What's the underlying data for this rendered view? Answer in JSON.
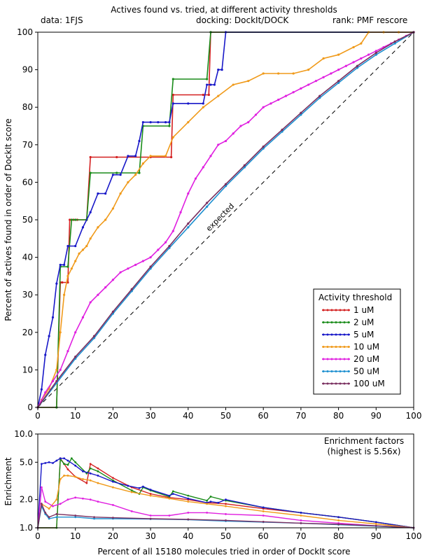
{
  "header": {
    "title": "Actives found vs. tried, at different activity thresholds",
    "data_label": "data: 1FJS",
    "docking_label": "docking: DockIt/DOCK",
    "rank_label": "rank: PMF rescore"
  },
  "chart_data": [
    {
      "type": "line",
      "ylabel": "Percent of actives found in order of DockIt score",
      "xlim": [
        0,
        100
      ],
      "ylim": [
        0,
        100
      ],
      "x_ticks": [
        "0",
        "10",
        "20",
        "30",
        "40",
        "50",
        "60",
        "70",
        "80",
        "90",
        "100"
      ],
      "y_ticks": [
        "0",
        "10",
        "20",
        "30",
        "40",
        "50",
        "60",
        "70",
        "80",
        "90",
        "100"
      ],
      "reference_line_label": "expected",
      "legend_title": "Activity threshold",
      "legend_position": "bottom-right",
      "series": [
        {
          "name": "1 uM",
          "color": "#d42020",
          "x": [
            0,
            5,
            6,
            6.5,
            8,
            8.5,
            9.5,
            10.5,
            13,
            14,
            21,
            30,
            35.5,
            36,
            44,
            45.5,
            46,
            100
          ],
          "y": [
            0,
            0,
            33.3,
            33.3,
            33.3,
            50,
            50,
            50,
            50,
            66.7,
            66.7,
            66.7,
            66.7,
            83.3,
            83.3,
            83.3,
            100,
            100
          ]
        },
        {
          "name": "2 uM",
          "color": "#1a8c1a",
          "x": [
            0,
            5,
            6,
            8,
            9,
            10,
            13,
            14,
            21,
            27,
            28,
            35,
            36,
            45,
            46,
            100
          ],
          "y": [
            0,
            0,
            37.5,
            37.5,
            50,
            50,
            50,
            62.5,
            62.5,
            62.5,
            75,
            75,
            87.5,
            87.5,
            100,
            100
          ]
        },
        {
          "name": "5 uM",
          "color": "#1818c8",
          "x": [
            0,
            1,
            2,
            3,
            4,
            5,
            6,
            7,
            8,
            10,
            12,
            14,
            16,
            18,
            20,
            22,
            24,
            26,
            27,
            28,
            30,
            32,
            34,
            35,
            36,
            40,
            44,
            45,
            46,
            47,
            48,
            49,
            50,
            100
          ],
          "y": [
            0,
            4.8,
            14,
            19,
            24,
            33,
            38,
            38,
            43,
            43,
            48,
            52,
            57,
            57,
            62,
            62,
            67,
            67,
            71,
            76,
            76,
            76,
            76,
            76,
            81,
            81,
            81,
            86,
            86,
            86,
            90,
            90,
            100,
            100
          ]
        },
        {
          "name": "10 uM",
          "color": "#f09a1a",
          "x": [
            0,
            1,
            3,
            5,
            6,
            7,
            8,
            9,
            10,
            11,
            12,
            13,
            14,
            16,
            18,
            20,
            22,
            24,
            26,
            28,
            30,
            34,
            36,
            40,
            44,
            48,
            52,
            56,
            60,
            64,
            68,
            72,
            76,
            80,
            84,
            86,
            88,
            92,
            96,
            100
          ],
          "y": [
            0,
            2,
            5,
            10,
            20,
            30,
            35,
            37,
            39,
            41,
            42,
            43,
            45,
            48,
            50,
            53,
            57,
            60,
            62,
            65,
            67,
            67,
            72,
            76,
            80,
            83,
            86,
            87,
            89,
            89,
            89,
            90,
            93,
            94,
            96,
            97,
            100,
            100,
            100,
            100
          ]
        },
        {
          "name": "20 uM",
          "color": "#e020e0",
          "x": [
            0,
            2,
            4,
            6,
            8,
            10,
            12,
            14,
            16,
            18,
            20,
            22,
            24,
            26,
            28,
            30,
            32,
            34,
            36,
            38,
            40,
            42,
            44,
            46,
            48,
            50,
            52,
            54,
            56,
            58,
            60,
            62,
            64,
            66,
            68,
            70,
            72,
            74,
            76,
            78,
            80,
            82,
            84,
            86,
            88,
            90,
            92,
            94,
            96,
            98,
            100
          ],
          "y": [
            0,
            4,
            7,
            10,
            15,
            20,
            24,
            28,
            30,
            32,
            34,
            36,
            37,
            38,
            39,
            40,
            42,
            44,
            47,
            52,
            57,
            61,
            64,
            67,
            70,
            71,
            73,
            75,
            76,
            78,
            80,
            81,
            82,
            83,
            84,
            85,
            86,
            87,
            88,
            89,
            90,
            91,
            92,
            93,
            94,
            95,
            96,
            97,
            98,
            99,
            100
          ]
        },
        {
          "name": "50 uM",
          "color": "#1e90d0",
          "x": [
            0,
            5,
            10,
            15,
            20,
            25,
            30,
            35,
            40,
            45,
            50,
            55,
            60,
            65,
            70,
            75,
            80,
            85,
            90,
            95,
            100
          ],
          "y": [
            0,
            6.5,
            13,
            18.5,
            25,
            31,
            37,
            42.5,
            48,
            53.5,
            59,
            64,
            69,
            73.5,
            78,
            82.5,
            86.5,
            90.5,
            94,
            97,
            100
          ]
        },
        {
          "name": "100 uM",
          "color": "#7a3060",
          "x": [
            0,
            5,
            10,
            15,
            20,
            25,
            30,
            35,
            40,
            45,
            50,
            55,
            60,
            65,
            70,
            75,
            80,
            85,
            90,
            95,
            100
          ],
          "y": [
            0,
            7,
            13.5,
            19,
            25.5,
            31.5,
            37.5,
            43,
            49,
            54.5,
            59.5,
            64.5,
            69.5,
            74,
            78.5,
            83,
            87,
            91,
            94.5,
            97.5,
            100
          ]
        }
      ]
    },
    {
      "type": "line",
      "xlabel": "Percent of all 15180 molecules tried in order of DockIt score",
      "ylabel": "Enrichment",
      "y_scale": "log",
      "xlim": [
        0,
        100
      ],
      "ylim": [
        1,
        10
      ],
      "x_ticks": [
        "0",
        "10",
        "20",
        "30",
        "40",
        "50",
        "60",
        "70",
        "80",
        "90",
        "100"
      ],
      "y_ticks": [
        {
          "value": 1,
          "label": "1.0"
        },
        {
          "value": 2,
          "label": "2.0"
        },
        {
          "value": 5,
          "label": "5.0"
        },
        {
          "value": 10,
          "label": "10.0"
        }
      ],
      "annotation_line1": "Enrichment factors",
      "annotation_line2": "(highest is 5.56x)",
      "series": [
        {
          "name": "1 uM",
          "color": "#d42020",
          "x": [
            0,
            5,
            6,
            7,
            8,
            10,
            13,
            14,
            16,
            20,
            25,
            30,
            35,
            40,
            45,
            50,
            60,
            70,
            80,
            90,
            100
          ],
          "y": [
            1,
            1,
            5.5,
            4.8,
            4.2,
            3.5,
            3.0,
            4.8,
            4.3,
            3.4,
            2.7,
            2.3,
            2.1,
            2.0,
            1.85,
            1.8,
            1.6,
            1.45,
            1.3,
            1.15,
            1
          ]
        },
        {
          "name": "2 uM",
          "color": "#1a8c1a",
          "x": [
            0,
            5,
            6,
            7,
            8,
            9,
            10,
            13,
            14,
            16,
            20,
            25,
            27,
            28,
            30,
            35,
            36,
            40,
            45,
            46,
            50,
            60,
            70,
            80,
            90,
            100
          ],
          "y": [
            1,
            1,
            5.4,
            4.8,
            4.7,
            5.5,
            5.0,
            3.8,
            4.3,
            4.0,
            3.2,
            2.5,
            2.3,
            2.7,
            2.5,
            2.15,
            2.45,
            2.2,
            1.95,
            2.15,
            1.95,
            1.65,
            1.45,
            1.3,
            1.15,
            1
          ]
        },
        {
          "name": "5 uM",
          "color": "#1818c8",
          "x": [
            0,
            1,
            2,
            3,
            4,
            5,
            6,
            7,
            8,
            10,
            12,
            14,
            16,
            20,
            24,
            27,
            28,
            30,
            35,
            36,
            40,
            45,
            46,
            48,
            50,
            60,
            70,
            80,
            90,
            100
          ],
          "y": [
            1,
            4.8,
            4.9,
            5.0,
            4.9,
            5.2,
            5.5,
            5.5,
            5.2,
            4.6,
            4.0,
            3.8,
            3.6,
            3.1,
            2.8,
            2.65,
            2.75,
            2.55,
            2.2,
            2.3,
            2.05,
            1.85,
            1.9,
            1.85,
            2.0,
            1.65,
            1.45,
            1.3,
            1.15,
            1
          ]
        },
        {
          "name": "10 uM",
          "color": "#f09a1a",
          "x": [
            0,
            1,
            3,
            5,
            6,
            7,
            8,
            10,
            12,
            14,
            16,
            20,
            25,
            30,
            35,
            40,
            45,
            50,
            60,
            70,
            80,
            90,
            100
          ],
          "y": [
            1,
            1.8,
            1.6,
            2.0,
            3.3,
            3.6,
            3.6,
            3.5,
            3.3,
            3.2,
            3.0,
            2.7,
            2.4,
            2.2,
            2.05,
            1.9,
            1.8,
            1.7,
            1.5,
            1.35,
            1.2,
            1.1,
            1
          ]
        },
        {
          "name": "20 uM",
          "color": "#e020e0",
          "x": [
            0,
            1,
            2,
            4,
            6,
            8,
            10,
            12,
            14,
            16,
            20,
            25,
            30,
            35,
            40,
            45,
            50,
            60,
            70,
            80,
            90,
            100
          ],
          "y": [
            1,
            2.7,
            1.9,
            1.7,
            1.8,
            2.0,
            2.1,
            2.05,
            2.0,
            1.9,
            1.75,
            1.5,
            1.35,
            1.35,
            1.45,
            1.45,
            1.4,
            1.35,
            1.2,
            1.12,
            1.05,
            1
          ]
        },
        {
          "name": "50 uM",
          "color": "#1e90d0",
          "x": [
            0,
            1,
            2,
            3,
            5,
            10,
            15,
            20,
            30,
            40,
            50,
            60,
            70,
            80,
            90,
            100
          ],
          "y": [
            1,
            1.7,
            1.4,
            1.25,
            1.3,
            1.3,
            1.25,
            1.25,
            1.24,
            1.22,
            1.18,
            1.15,
            1.12,
            1.08,
            1.04,
            1
          ]
        },
        {
          "name": "100 uM",
          "color": "#7a3060",
          "x": [
            0,
            1,
            2,
            3,
            5,
            10,
            15,
            20,
            30,
            40,
            50,
            60,
            70,
            80,
            90,
            100
          ],
          "y": [
            1,
            1.8,
            1.45,
            1.3,
            1.4,
            1.35,
            1.3,
            1.28,
            1.25,
            1.23,
            1.2,
            1.16,
            1.12,
            1.09,
            1.05,
            1
          ]
        }
      ]
    }
  ]
}
